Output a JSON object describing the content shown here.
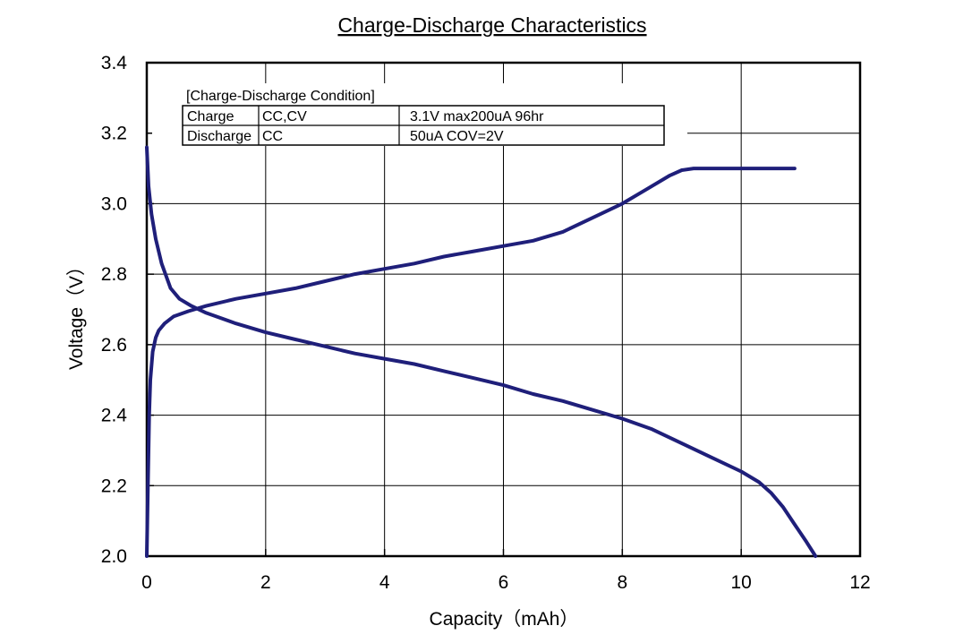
{
  "chart_data": {
    "type": "line",
    "title": "Charge-Discharge Characteristics",
    "xlabel": "Capacity（mAh）",
    "ylabel": "Voltage（V）",
    "xlim": [
      0,
      12
    ],
    "ylim": [
      2.0,
      3.4
    ],
    "x_ticks": [
      "0",
      "2",
      "4",
      "6",
      "8",
      "10",
      "12"
    ],
    "y_ticks": [
      "2.0",
      "2.2",
      "2.4",
      "2.6",
      "2.8",
      "3.0",
      "3.2",
      "3.4"
    ],
    "grid": true,
    "line_color": "#1f1f7a",
    "series": [
      {
        "curve": "charge",
        "x": [
          0.0,
          0.02,
          0.04,
          0.06,
          0.1,
          0.15,
          0.2,
          0.3,
          0.45,
          0.7,
          1.0,
          1.5,
          2.0,
          2.5,
          3.0,
          3.5,
          4.0,
          4.5,
          5.0,
          5.5,
          6.0,
          6.5,
          7.0,
          7.5,
          8.0,
          8.4,
          8.8,
          9.0,
          9.2,
          10.0,
          10.9
        ],
        "y": [
          2.0,
          2.2,
          2.4,
          2.5,
          2.58,
          2.62,
          2.64,
          2.66,
          2.68,
          2.695,
          2.71,
          2.73,
          2.745,
          2.76,
          2.78,
          2.8,
          2.815,
          2.83,
          2.85,
          2.865,
          2.88,
          2.895,
          2.92,
          2.96,
          3.0,
          3.04,
          3.08,
          3.095,
          3.1,
          3.1,
          3.1
        ]
      },
      {
        "curve": "discharge",
        "x": [
          0.0,
          0.03,
          0.08,
          0.15,
          0.25,
          0.4,
          0.55,
          0.75,
          1.0,
          1.5,
          2.0,
          2.5,
          3.0,
          3.5,
          4.0,
          4.5,
          5.0,
          5.5,
          6.0,
          6.5,
          7.0,
          7.5,
          8.0,
          8.5,
          9.0,
          9.5,
          10.0,
          10.3,
          10.5,
          10.7,
          10.9,
          11.1,
          11.25
        ],
        "y": [
          3.16,
          3.05,
          2.97,
          2.9,
          2.83,
          2.76,
          2.73,
          2.71,
          2.69,
          2.66,
          2.635,
          2.615,
          2.595,
          2.575,
          2.56,
          2.545,
          2.525,
          2.505,
          2.485,
          2.46,
          2.44,
          2.415,
          2.39,
          2.36,
          2.32,
          2.28,
          2.24,
          2.21,
          2.18,
          2.14,
          2.09,
          2.04,
          2.0
        ]
      }
    ],
    "condition_table": {
      "heading": "[Charge-Discharge Condition]",
      "rows": [
        {
          "label": "Charge",
          "method": "CC,CV",
          "detail": "3.1V  max200uA  96hr"
        },
        {
          "label": "Discharge",
          "method": "CC",
          "detail": "50uA  COV=2V"
        }
      ]
    }
  }
}
